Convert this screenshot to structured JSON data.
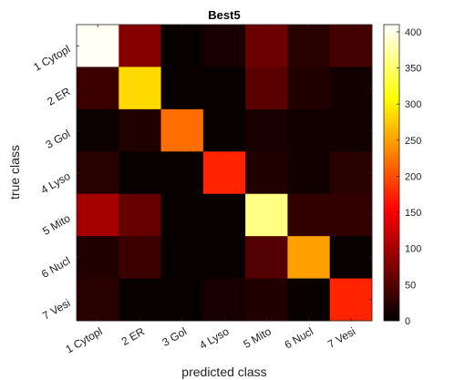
{
  "chart_data": {
    "type": "heatmap",
    "title": "Best5",
    "xlabel": "predicted class",
    "ylabel": "true class",
    "x_categories": [
      "1 Cytopl",
      "2 ER",
      "3 Gol",
      "4 Lyso",
      "5 Mito",
      "6 Nucl",
      "7 Vesi"
    ],
    "y_categories": [
      "1 Cytopl",
      "2 ER",
      "3 Gol",
      "4 Lyso",
      "5 Mito",
      "6 Nucl",
      "7 Vesi"
    ],
    "values": [
      [
        405,
        80,
        5,
        15,
        65,
        25,
        40
      ],
      [
        35,
        285,
        5,
        5,
        55,
        20,
        10
      ],
      [
        8,
        20,
        220,
        5,
        15,
        10,
        10
      ],
      [
        25,
        5,
        5,
        175,
        20,
        10,
        25
      ],
      [
        100,
        60,
        5,
        5,
        360,
        30,
        30
      ],
      [
        20,
        35,
        5,
        5,
        50,
        250,
        5
      ],
      [
        25,
        5,
        5,
        15,
        20,
        5,
        175
      ]
    ],
    "colormap": "hot",
    "clim": [
      0,
      410
    ],
    "colorbar_ticks": [
      0,
      50,
      100,
      150,
      200,
      250,
      300,
      350,
      400
    ],
    "grid": false,
    "colorbar_position": "right"
  }
}
